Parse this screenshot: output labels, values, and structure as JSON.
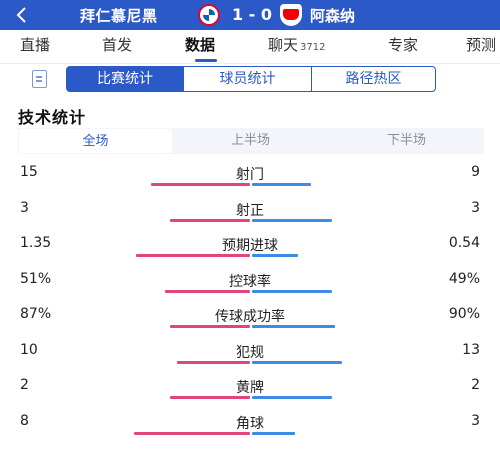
{
  "header": {
    "home_team": "拜仁慕尼黑",
    "score": "1 - 0",
    "away_team": "阿森纳",
    "home_logo": "bayern-logo",
    "away_logo": "arsenal-logo",
    "color": "#2b59c7"
  },
  "tabs": [
    {
      "label": "直播"
    },
    {
      "label": "首发"
    },
    {
      "label": "数据",
      "active": true
    },
    {
      "label": "聊天",
      "badge": "3712"
    },
    {
      "label": "专家"
    },
    {
      "label": "预测"
    }
  ],
  "subtabs": [
    "比赛统计",
    "球员统计",
    "路径热区"
  ],
  "section_title": "技术统计",
  "periods": [
    "全场",
    "上半场",
    "下半场"
  ],
  "stats": [
    {
      "name": "射门",
      "home": "15",
      "away": "9",
      "home_ratio": 0.58,
      "away_ratio": 0.35
    },
    {
      "name": "射正",
      "home": "3",
      "away": "3",
      "home_ratio": 0.47,
      "away_ratio": 0.47
    },
    {
      "name": "预期进球",
      "home": "1.35",
      "away": "0.54",
      "home_ratio": 0.67,
      "away_ratio": 0.27
    },
    {
      "name": "控球率",
      "home": "51%",
      "away": "49%",
      "home_ratio": 0.5,
      "away_ratio": 0.47
    },
    {
      "name": "传球成功率",
      "home": "87%",
      "away": "90%",
      "home_ratio": 0.47,
      "away_ratio": 0.49
    },
    {
      "name": "犯规",
      "home": "10",
      "away": "13",
      "home_ratio": 0.43,
      "away_ratio": 0.53
    },
    {
      "name": "黄牌",
      "home": "2",
      "away": "2",
      "home_ratio": 0.47,
      "away_ratio": 0.47
    },
    {
      "name": "角球",
      "home": "8",
      "away": "3",
      "home_ratio": 0.68,
      "away_ratio": 0.25
    }
  ],
  "colors": {
    "home_bar": "#e0457b",
    "away_bar": "#3c8ce7"
  }
}
